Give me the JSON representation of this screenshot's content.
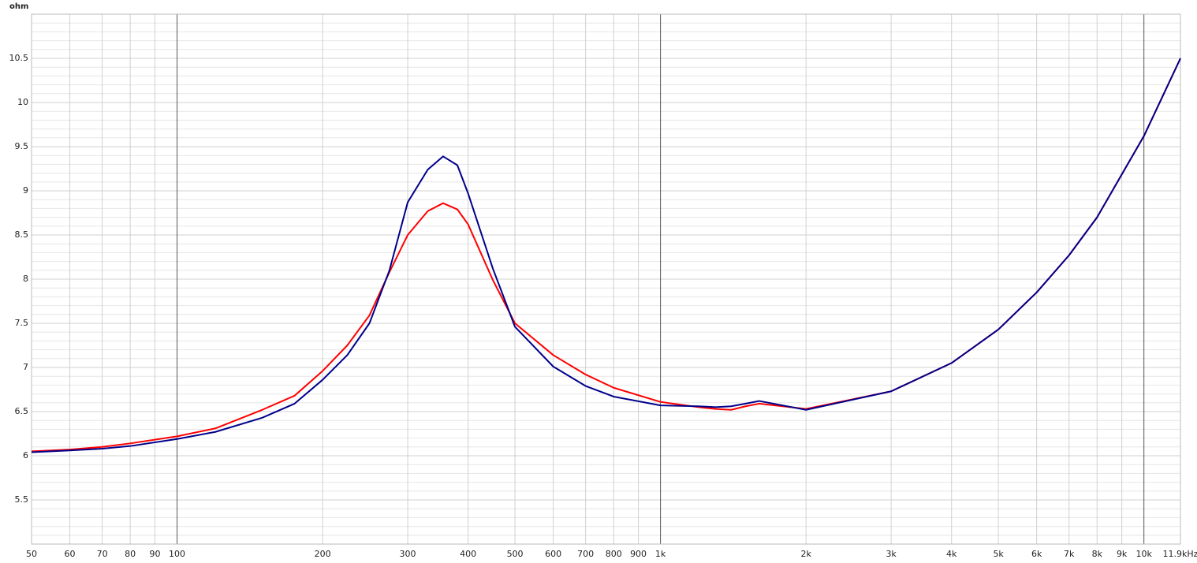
{
  "chart_data": {
    "type": "line",
    "y_label": "ohm",
    "xscale": "log",
    "grid": true,
    "xlim": [
      50,
      11900
    ],
    "ylim": [
      5,
      11
    ],
    "xticks": [
      50,
      60,
      70,
      80,
      90,
      100,
      200,
      300,
      400,
      500,
      600,
      700,
      800,
      900,
      {
        "value": 1000,
        "label": "1k"
      },
      {
        "value": 2000,
        "label": "2k"
      },
      {
        "value": 3000,
        "label": "3k"
      },
      {
        "value": 4000,
        "label": "4k"
      },
      {
        "value": 5000,
        "label": "5k"
      },
      {
        "value": 6000,
        "label": "6k"
      },
      {
        "value": 7000,
        "label": "7k"
      },
      {
        "value": 8000,
        "label": "8k"
      },
      {
        "value": 9000,
        "label": "9k"
      },
      {
        "value": 10000,
        "label": "10k"
      },
      {
        "value": 11900,
        "label": "11.9kHz"
      }
    ],
    "yticks": [
      5.5,
      6.0,
      6.5,
      7.0,
      7.5,
      8.0,
      8.5,
      9.0,
      9.5,
      10.0,
      10.5
    ],
    "x": [
      50,
      60,
      70,
      80,
      100,
      120,
      150,
      175,
      200,
      225,
      250,
      275,
      300,
      330,
      355,
      380,
      400,
      450,
      500,
      600,
      700,
      800,
      1000,
      1200,
      1300,
      1400,
      1500,
      1600,
      2000,
      3000,
      4000,
      5000,
      6000,
      7000,
      8000,
      10000,
      11900
    ],
    "series": [
      {
        "color": "#ff0000",
        "values": [
          6.05,
          6.07,
          6.1,
          6.14,
          6.22,
          6.31,
          6.52,
          6.68,
          6.96,
          7.25,
          7.59,
          8.08,
          8.5,
          8.77,
          8.86,
          8.79,
          8.62,
          7.99,
          7.5,
          7.14,
          6.92,
          6.77,
          6.61,
          6.55,
          6.53,
          6.52,
          6.56,
          6.59,
          6.53,
          6.73,
          7.05,
          7.43,
          7.85,
          8.27,
          8.7,
          9.62,
          10.5
        ]
      },
      {
        "color": "#00008b",
        "values": [
          6.04,
          6.06,
          6.08,
          6.11,
          6.19,
          6.27,
          6.43,
          6.59,
          6.86,
          7.14,
          7.5,
          8.1,
          8.87,
          9.24,
          9.39,
          9.29,
          8.97,
          8.12,
          7.46,
          7.01,
          6.79,
          6.67,
          6.57,
          6.56,
          6.55,
          6.56,
          6.59,
          6.62,
          6.52,
          6.73,
          7.05,
          7.43,
          7.85,
          8.27,
          8.7,
          9.62,
          10.5
        ]
      }
    ]
  }
}
